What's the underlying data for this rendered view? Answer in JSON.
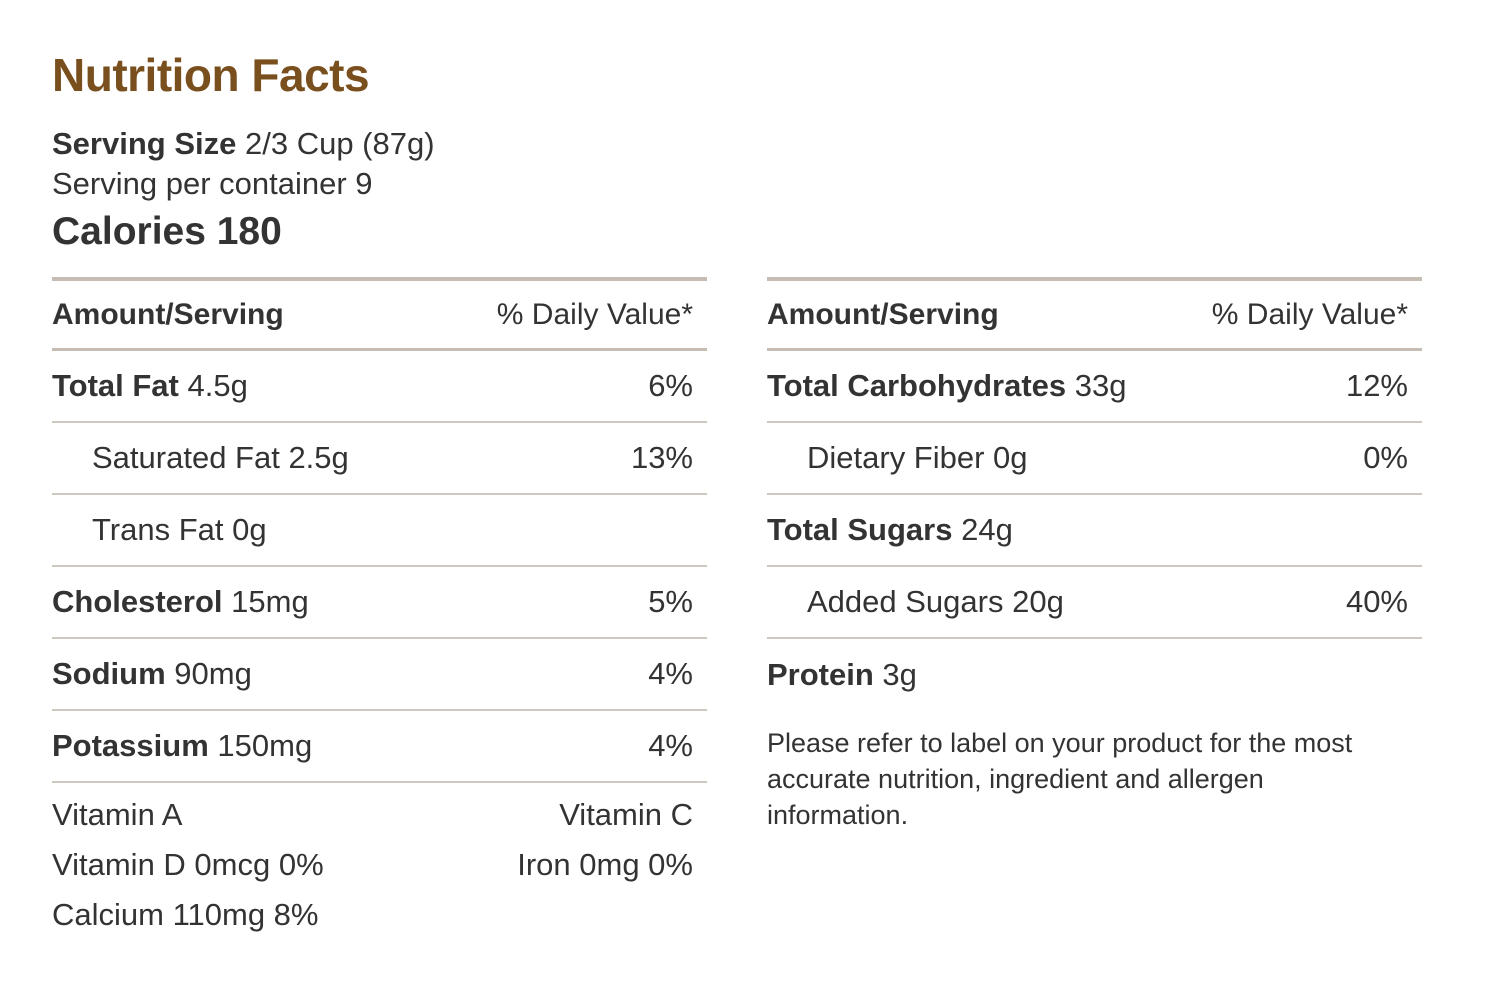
{
  "header": {
    "title": "Nutrition Facts",
    "serving_size_label": "Serving Size",
    "serving_size_value": "2/3 Cup (87g)",
    "servings_per_container": "Serving per container 9",
    "calories": "Calories 180"
  },
  "columns": {
    "amount_header": "Amount/Serving",
    "daily_value_header": "% Daily Value*"
  },
  "left": {
    "rows": [
      {
        "name": "Total Fat",
        "amount": "4.5g",
        "dv": "6%"
      },
      {
        "name": "Saturated Fat 2.5g",
        "amount": "",
        "dv": "13%"
      },
      {
        "name": "Trans Fat 0g",
        "amount": "",
        "dv": ""
      },
      {
        "name": "Cholesterol",
        "amount": "15mg",
        "dv": "5%"
      },
      {
        "name": "Sodium",
        "amount": "90mg",
        "dv": "4%"
      },
      {
        "name": "Potassium",
        "amount": "150mg",
        "dv": "4%"
      }
    ],
    "vitamins": {
      "vitamin_a": "Vitamin A",
      "vitamin_c": "Vitamin C",
      "vitamin_d": "Vitamin D 0mcg 0%",
      "iron": "Iron 0mg 0%",
      "calcium": "Calcium 110mg 8%"
    }
  },
  "right": {
    "rows": [
      {
        "name": "Total Carbohydrates",
        "amount": "33g",
        "dv": "12%"
      },
      {
        "name": "Dietary Fiber 0g",
        "amount": "",
        "dv": "0%"
      },
      {
        "name": "Total Sugars",
        "amount": "24g",
        "dv": ""
      },
      {
        "name": "Added Sugars 20g",
        "amount": "",
        "dv": "40%"
      },
      {
        "name": "Protein",
        "amount": "3g",
        "dv": ""
      }
    ],
    "disclaimer": "Please refer to label on your product for the most accurate nutrition, ingredient and allergen information."
  }
}
